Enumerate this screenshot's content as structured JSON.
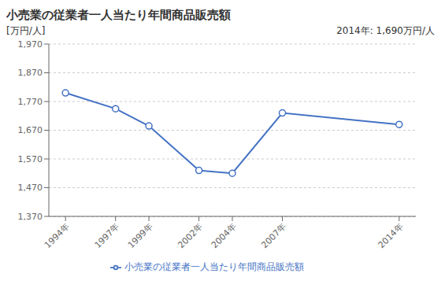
{
  "chart_data": {
    "type": "line",
    "title": "小売業の従業者一人当たり年間商品販売額",
    "y_label": "[万円/人]",
    "annotation": "2014年: 1,690万円/人",
    "x": [
      1994,
      1997,
      1999,
      2002,
      2004,
      2007,
      2014
    ],
    "xlim": [
      1993,
      2015
    ],
    "xticks": [
      {
        "value": 1994,
        "label": "1994年"
      },
      {
        "value": 1997,
        "label": "1997年"
      },
      {
        "value": 1999,
        "label": "1999年"
      },
      {
        "value": 2002,
        "label": "2002年"
      },
      {
        "value": 2004,
        "label": "2004年"
      },
      {
        "value": 2007,
        "label": "2007年"
      },
      {
        "value": 2014,
        "label": "2014年"
      }
    ],
    "ylim": [
      1370,
      1970
    ],
    "yticks": [
      {
        "value": 1370,
        "label": "1,370"
      },
      {
        "value": 1470,
        "label": "1,470"
      },
      {
        "value": 1570,
        "label": "1,570"
      },
      {
        "value": 1670,
        "label": "1,670"
      },
      {
        "value": 1770,
        "label": "1,770"
      },
      {
        "value": 1870,
        "label": "1,870"
      },
      {
        "value": 1970,
        "label": "1,970"
      }
    ],
    "series": [
      {
        "name": "小売業の従業者一人当たり年間商品販売額",
        "color": "#4472C4",
        "marker": "circle",
        "values": [
          1800,
          1745,
          1685,
          1530,
          1520,
          1730,
          1690
        ]
      }
    ],
    "grid": true,
    "legend": "bottom"
  }
}
